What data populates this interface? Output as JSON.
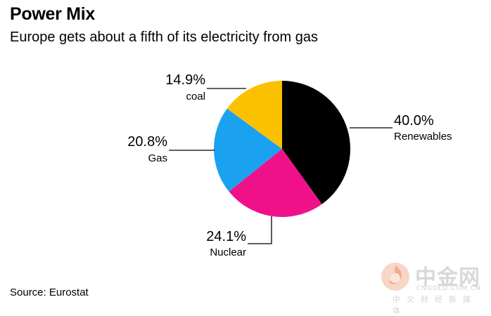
{
  "chart_data": {
    "type": "pie",
    "title": "Power Mix",
    "subtitle": "Europe gets about a fifth of its electricity from gas",
    "slices": [
      {
        "name": "Renewables",
        "value": 40.0,
        "label": "40.0%",
        "color": "#000000"
      },
      {
        "name": "Nuclear",
        "value": 24.1,
        "label": "24.1%",
        "color": "#f0118a"
      },
      {
        "name": "Gas",
        "value": 20.8,
        "label": "20.8%",
        "color": "#1aa2f0"
      },
      {
        "name": "coal",
        "value": 14.9,
        "label": "14.9%",
        "color": "#fbc100"
      }
    ],
    "legend": "none",
    "grid": false
  },
  "source": "Source: Eurostat",
  "watermark": {
    "name": "中金网",
    "site": "CNGOLD.COM.CN",
    "tagline": "中文财经新媒体"
  }
}
